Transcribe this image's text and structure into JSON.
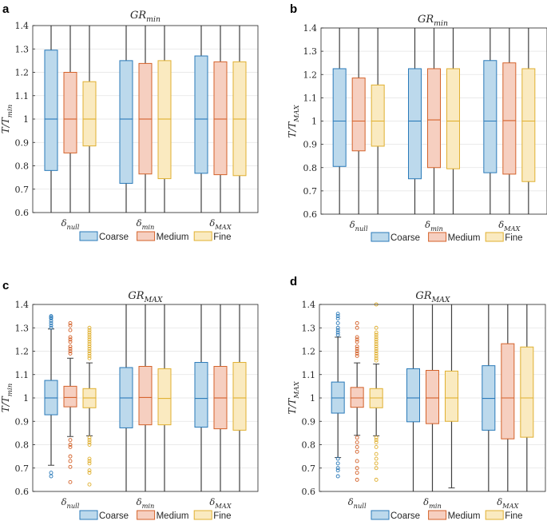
{
  "figure": {
    "legend": [
      "Coarse",
      "Medium",
      "Fine"
    ],
    "colors": {
      "Coarse": {
        "fill": "#bcd9ec",
        "edge": "#2a7ab9"
      },
      "Medium": {
        "fill": "#f6cfc0",
        "edge": "#d4622a"
      },
      "Fine": {
        "fill": "#faeac0",
        "edge": "#e0b030"
      },
      "whisker": "#404040"
    }
  },
  "chart_data": [
    {
      "panel": "a",
      "type": "box",
      "title": "GR_min",
      "title_base": "GR",
      "title_sub": "min",
      "ylabel_base": "T/T",
      "ylabel_sub": "min",
      "ylim": [
        0.6,
        1.4
      ],
      "yticks": [
        0.6,
        0.7,
        0.8,
        0.9,
        1,
        1.1,
        1.2,
        1.3,
        1.4
      ],
      "categories": [
        {
          "base": "δ",
          "sub": "null"
        },
        {
          "base": "δ",
          "sub": "min"
        },
        {
          "base": "δ",
          "sub": "MAX"
        }
      ],
      "series": [
        {
          "name": "Coarse",
          "boxes": [
            {
              "lo": 0.6,
              "q1": 0.78,
              "med": 1.0,
              "q3": 1.295,
              "hi": 1.4
            },
            {
              "lo": 0.6,
              "q1": 0.725,
              "med": 1.0,
              "q3": 1.25,
              "hi": 1.4
            },
            {
              "lo": 0.6,
              "q1": 0.768,
              "med": 1.0,
              "q3": 1.27,
              "hi": 1.4
            }
          ]
        },
        {
          "name": "Medium",
          "boxes": [
            {
              "lo": 0.6,
              "q1": 0.855,
              "med": 1.0,
              "q3": 1.2,
              "hi": 1.4
            },
            {
              "lo": 0.6,
              "q1": 0.765,
              "med": 1.0,
              "q3": 1.238,
              "hi": 1.4
            },
            {
              "lo": 0.6,
              "q1": 0.762,
              "med": 1.0,
              "q3": 1.245,
              "hi": 1.4
            }
          ]
        },
        {
          "name": "Fine",
          "boxes": [
            {
              "lo": 0.6,
              "q1": 0.885,
              "med": 1.0,
              "q3": 1.16,
              "hi": 1.4
            },
            {
              "lo": 0.6,
              "q1": 0.745,
              "med": 1.0,
              "q3": 1.25,
              "hi": 1.4
            },
            {
              "lo": 0.6,
              "q1": 0.758,
              "med": 1.0,
              "q3": 1.245,
              "hi": 1.4
            }
          ]
        }
      ]
    },
    {
      "panel": "b",
      "type": "box",
      "title": "GR_min",
      "title_base": "GR",
      "title_sub": "min",
      "ylabel_base": "T/T",
      "ylabel_sub": "MAX",
      "ylim": [
        0.6,
        1.4
      ],
      "yticks": [
        0.6,
        0.7,
        0.8,
        0.9,
        1,
        1.1,
        1.2,
        1.3,
        1.4
      ],
      "categories": [
        {
          "base": "δ",
          "sub": "null"
        },
        {
          "base": "δ",
          "sub": "min"
        },
        {
          "base": "δ",
          "sub": "MAX"
        }
      ],
      "series": [
        {
          "name": "Coarse",
          "boxes": [
            {
              "lo": 0.6,
              "q1": 0.805,
              "med": 1.0,
              "q3": 1.225,
              "hi": 1.4
            },
            {
              "lo": 0.6,
              "q1": 0.752,
              "med": 1.0,
              "q3": 1.225,
              "hi": 1.4
            },
            {
              "lo": 0.6,
              "q1": 0.778,
              "med": 1.0,
              "q3": 1.26,
              "hi": 1.4
            }
          ]
        },
        {
          "name": "Medium",
          "boxes": [
            {
              "lo": 0.6,
              "q1": 0.872,
              "med": 1.0,
              "q3": 1.185,
              "hi": 1.4
            },
            {
              "lo": 0.6,
              "q1": 0.8,
              "med": 1.005,
              "q3": 1.225,
              "hi": 1.4
            },
            {
              "lo": 0.6,
              "q1": 0.772,
              "med": 1.002,
              "q3": 1.25,
              "hi": 1.4
            }
          ]
        },
        {
          "name": "Fine",
          "boxes": [
            {
              "lo": 0.6,
              "q1": 0.892,
              "med": 1.0,
              "q3": 1.155,
              "hi": 1.4
            },
            {
              "lo": 0.6,
              "q1": 0.795,
              "med": 1.0,
              "q3": 1.225,
              "hi": 1.4
            },
            {
              "lo": 0.6,
              "q1": 0.74,
              "med": 1.0,
              "q3": 1.225,
              "hi": 1.4
            }
          ]
        }
      ]
    },
    {
      "panel": "c",
      "type": "box",
      "title": "GR_MAX",
      "title_base": "GR",
      "title_sub": "MAX",
      "ylabel_base": "T/T",
      "ylabel_sub": "min",
      "ylim": [
        0.6,
        1.4
      ],
      "yticks": [
        0.6,
        0.7,
        0.8,
        0.9,
        1,
        1.1,
        1.2,
        1.3,
        1.4
      ],
      "categories": [
        {
          "base": "δ",
          "sub": "null"
        },
        {
          "base": "δ",
          "sub": "min"
        },
        {
          "base": "δ",
          "sub": "MAX"
        }
      ],
      "series": [
        {
          "name": "Coarse",
          "boxes": [
            {
              "lo": 0.712,
              "q1": 0.928,
              "med": 1.0,
              "q3": 1.075,
              "hi": 1.295,
              "outliers": [
                1.35,
                1.345,
                1.34,
                1.33,
                1.32,
                1.31,
                1.3,
                0.68,
                0.665
              ]
            },
            {
              "lo": 0.6,
              "q1": 0.872,
              "med": 1.0,
              "q3": 1.13,
              "hi": 1.4
            },
            {
              "lo": 0.6,
              "q1": 0.875,
              "med": 0.998,
              "q3": 1.152,
              "hi": 1.4
            }
          ]
        },
        {
          "name": "Medium",
          "boxes": [
            {
              "lo": 0.835,
              "q1": 0.962,
              "med": 1.002,
              "q3": 1.05,
              "hi": 1.17,
              "outliers": [
                1.32,
                1.31,
                1.29,
                1.26,
                1.25,
                1.24,
                1.22,
                1.21,
                1.2,
                1.19,
                0.82,
                0.8,
                0.79,
                0.75,
                0.73,
                0.705,
                0.64
              ]
            },
            {
              "lo": 0.6,
              "q1": 0.885,
              "med": 1.002,
              "q3": 1.135,
              "hi": 1.4
            },
            {
              "lo": 0.6,
              "q1": 0.868,
              "med": 1.0,
              "q3": 1.135,
              "hi": 1.4
            }
          ]
        },
        {
          "name": "Fine",
          "boxes": [
            {
              "lo": 0.838,
              "q1": 0.958,
              "med": 1.0,
              "q3": 1.04,
              "hi": 1.15,
              "outliers": [
                1.3,
                1.29,
                1.28,
                1.27,
                1.26,
                1.25,
                1.24,
                1.23,
                1.22,
                1.21,
                1.2,
                1.19,
                1.18,
                1.17,
                0.83,
                0.82,
                0.81,
                0.8,
                0.74,
                0.73,
                0.72,
                0.69,
                0.68,
                0.63
              ]
            },
            {
              "lo": 0.6,
              "q1": 0.885,
              "med": 0.998,
              "q3": 1.125,
              "hi": 1.4
            },
            {
              "lo": 0.6,
              "q1": 0.862,
              "med": 1.0,
              "q3": 1.152,
              "hi": 1.4
            }
          ]
        }
      ]
    },
    {
      "panel": "d",
      "type": "box",
      "title": "GR_MAX",
      "title_base": "GR",
      "title_sub": "MAX",
      "ylabel_base": "T/T",
      "ylabel_sub": "MAX",
      "ylim": [
        0.6,
        1.4
      ],
      "yticks": [
        0.6,
        0.7,
        0.8,
        0.9,
        1,
        1.1,
        1.2,
        1.3,
        1.4
      ],
      "categories": [
        {
          "base": "δ",
          "sub": "null"
        },
        {
          "base": "δ",
          "sub": "min"
        },
        {
          "base": "δ",
          "sub": "MAX"
        }
      ],
      "series": [
        {
          "name": "Coarse",
          "boxes": [
            {
              "lo": 0.745,
              "q1": 0.935,
              "med": 1.0,
              "q3": 1.068,
              "hi": 1.26,
              "outliers": [
                1.36,
                1.35,
                1.34,
                1.32,
                1.3,
                1.29,
                1.28,
                1.27,
                0.74,
                0.72,
                0.7,
                0.69,
                0.665
              ]
            },
            {
              "lo": 0.6,
              "q1": 0.898,
              "med": 1.0,
              "q3": 1.125,
              "hi": 1.4
            },
            {
              "lo": 0.6,
              "q1": 0.862,
              "med": 0.998,
              "q3": 1.138,
              "hi": 1.4
            }
          ]
        },
        {
          "name": "Medium",
          "boxes": [
            {
              "lo": 0.84,
              "q1": 0.96,
              "med": 1.0,
              "q3": 1.045,
              "hi": 1.15,
              "outliers": [
                1.32,
                1.3,
                1.26,
                1.25,
                1.24,
                1.22,
                1.21,
                1.2,
                1.19,
                1.18,
                0.83,
                0.81,
                0.79,
                0.77,
                0.73,
                0.7,
                0.68,
                0.65
              ]
            },
            {
              "lo": 0.6,
              "q1": 0.89,
              "med": 1.0,
              "q3": 1.118,
              "hi": 1.4
            },
            {
              "lo": 0.6,
              "q1": 0.825,
              "med": 1.0,
              "q3": 1.232,
              "hi": 1.4
            }
          ]
        },
        {
          "name": "Fine",
          "boxes": [
            {
              "lo": 0.838,
              "q1": 0.958,
              "med": 1.0,
              "q3": 1.04,
              "hi": 1.145,
              "outliers": [
                1.4,
                1.3,
                1.28,
                1.27,
                1.26,
                1.25,
                1.24,
                1.23,
                1.22,
                1.21,
                1.2,
                1.19,
                1.18,
                1.17,
                1.16,
                0.83,
                0.82,
                0.81,
                0.79,
                0.76,
                0.74,
                0.72,
                0.7,
                0.65
              ]
            },
            {
              "lo": 0.615,
              "q1": 0.9,
              "med": 1.0,
              "q3": 1.115,
              "hi": 1.4
            },
            {
              "lo": 0.6,
              "q1": 0.832,
              "med": 1.0,
              "q3": 1.218,
              "hi": 1.4
            }
          ]
        }
      ]
    }
  ]
}
